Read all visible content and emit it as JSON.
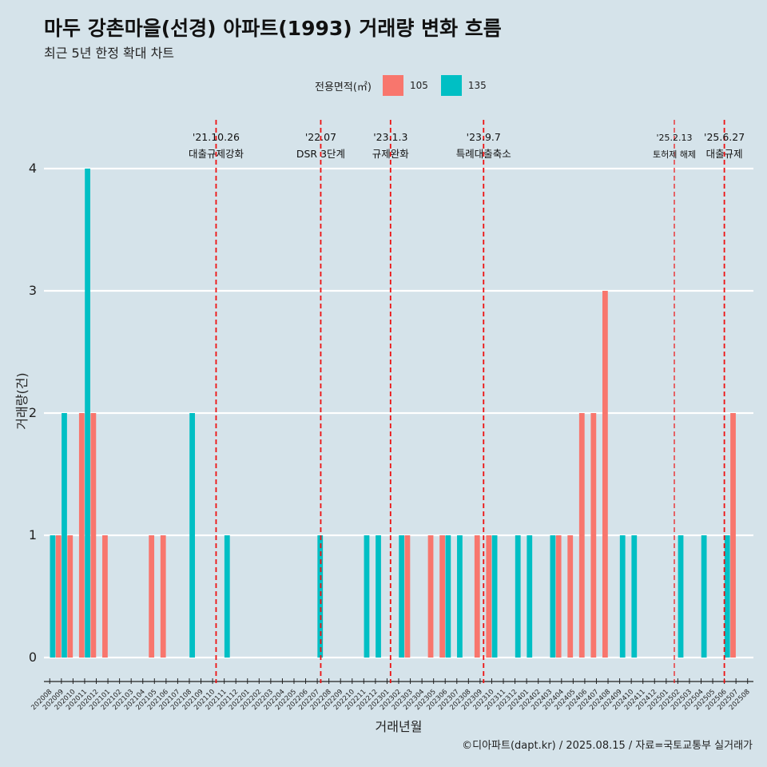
{
  "title": "마두 강촌마을(선경) 아파트(1993) 거래량 변화 흐름",
  "subtitle": "최근 5년 한정 확대 차트",
  "caption": "©디아파트(dapt.kr) / 2025.08.15 / 자료=국토교통부 실거래가",
  "legend": {
    "title": "전용면적(㎡)",
    "entries": [
      {
        "label": "105",
        "color": "#F8766D"
      },
      {
        "label": "135",
        "color": "#00BFC4"
      }
    ]
  },
  "chart_data": {
    "type": "bar",
    "xlabel": "거래년월",
    "ylabel": "거래량(건)",
    "ylim": [
      0,
      4
    ],
    "yticks": [
      "0",
      "1",
      "2",
      "3",
      "4"
    ],
    "grid": true,
    "legend_position": "top",
    "categories": [
      "202008",
      "202009",
      "202010",
      "202011",
      "202012",
      "202101",
      "202102",
      "202103",
      "202104",
      "202105",
      "202106",
      "202107",
      "202108",
      "202109",
      "202110",
      "202111",
      "202112",
      "202201",
      "202202",
      "202203",
      "202204",
      "202205",
      "202206",
      "202207",
      "202208",
      "202209",
      "202210",
      "202211",
      "202212",
      "202301",
      "202302",
      "202303",
      "202304",
      "202305",
      "202306",
      "202307",
      "202308",
      "202309",
      "202310",
      "202311",
      "202312",
      "202401",
      "202402",
      "202403",
      "202404",
      "202405",
      "202406",
      "202407",
      "202408",
      "202409",
      "202410",
      "202411",
      "202412",
      "202501",
      "202502",
      "202503",
      "202504",
      "202505",
      "202506",
      "202507",
      "202508"
    ],
    "series": [
      {
        "name": "105",
        "color": "#F8766D",
        "values": [
          0,
          1,
          1,
          2,
          2,
          1,
          0,
          0,
          0,
          1,
          1,
          0,
          0,
          0,
          0,
          0,
          0,
          0,
          0,
          0,
          0,
          0,
          0,
          0,
          0,
          0,
          0,
          0,
          0,
          0,
          0,
          1,
          0,
          1,
          1,
          0,
          0,
          1,
          1,
          0,
          0,
          0,
          0,
          0,
          1,
          1,
          2,
          2,
          3,
          0,
          0,
          0,
          0,
          0,
          0,
          0,
          0,
          0,
          0,
          2,
          0
        ]
      },
      {
        "name": "135",
        "color": "#00BFC4",
        "values": [
          1,
          2,
          0,
          4,
          0,
          0,
          0,
          0,
          0,
          0,
          0,
          0,
          2,
          0,
          0,
          1,
          0,
          0,
          0,
          0,
          0,
          0,
          0,
          1,
          0,
          0,
          0,
          1,
          1,
          0,
          1,
          0,
          0,
          0,
          1,
          1,
          0,
          0,
          1,
          0,
          1,
          1,
          0,
          1,
          0,
          0,
          0,
          0,
          0,
          1,
          1,
          0,
          0,
          0,
          1,
          0,
          1,
          0,
          1,
          0,
          0
        ]
      }
    ],
    "annotations": [
      {
        "date": "'21.10.26",
        "label": "대출규제강화",
        "index": 14.8,
        "style": "thick"
      },
      {
        "date": "'22.07",
        "label": "DSR 3단계",
        "index": 23.8,
        "style": "thick"
      },
      {
        "date": "'23.1.3",
        "label": "규제완화",
        "index": 29.8,
        "style": "thick"
      },
      {
        "date": "'23.9.7",
        "label": "특례대출축소",
        "index": 37.8,
        "style": "thick"
      },
      {
        "date": "'25.2.13",
        "label": "토허제 해제",
        "index": 54.2,
        "style": "thin"
      },
      {
        "date": "'25.6.27",
        "label": "대출규제",
        "index": 58.5,
        "style": "thick"
      }
    ]
  }
}
